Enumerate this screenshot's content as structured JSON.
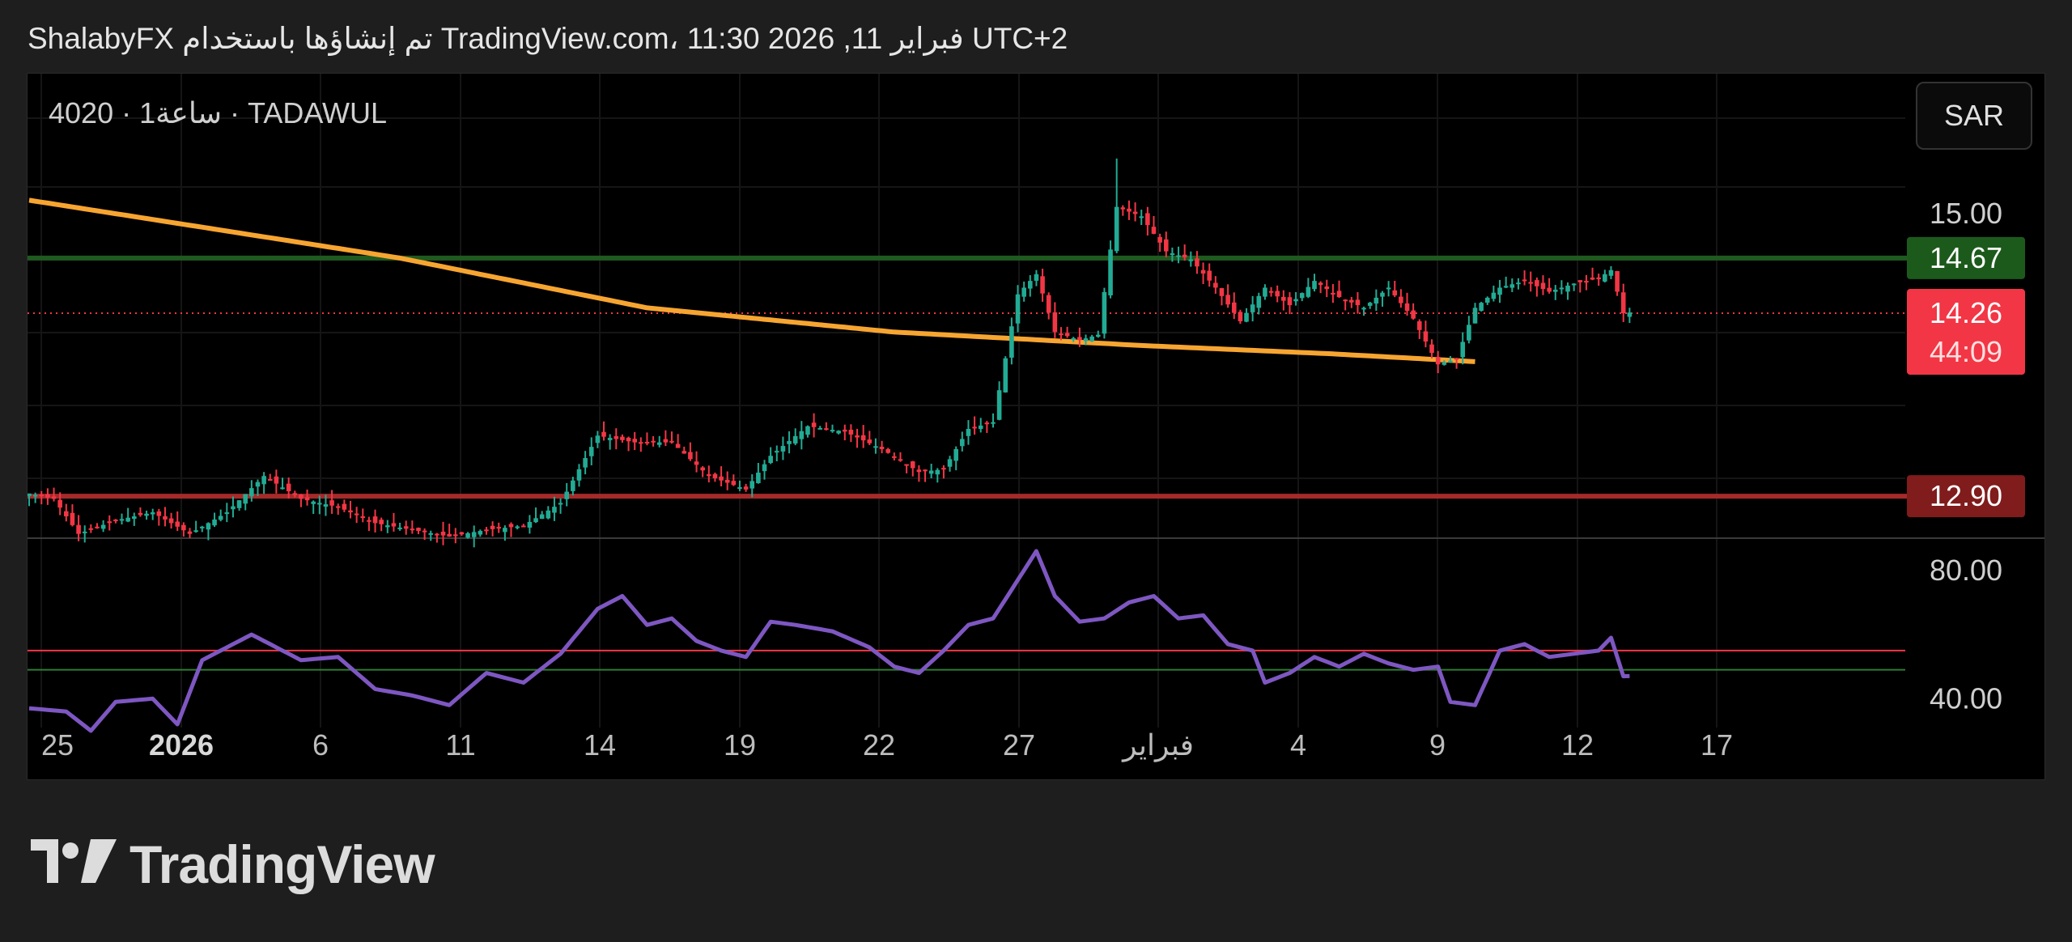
{
  "header": {
    "caption": "ShalabyFX تم إنشاؤها باستخدام TradingView.com، 11:30 2026 ,11 فبراير UTC+2"
  },
  "legend": {
    "symbol_text": "4020 · 1ساعة · TADAWUL"
  },
  "currency_button": {
    "label": "SAR"
  },
  "brand": {
    "name": "TradingView",
    "logo_icon": "tradingview-logo-icon"
  },
  "colors": {
    "up": "#22ab94",
    "down": "#f23645",
    "ma_line": "#f7a531",
    "resistance": "#1f5a1f",
    "support": "#a52a2a",
    "rsi": "#7e57c2",
    "rsi_upper": "#f23645",
    "rsi_lower": "#2e7d32"
  },
  "chart_data": {
    "type": "candlestick",
    "timeframe": "1h",
    "x_ticks": [
      {
        "label": "25",
        "bold": false
      },
      {
        "label": "2026",
        "bold": true
      },
      {
        "label": "6",
        "bold": false
      },
      {
        "label": "11",
        "bold": false
      },
      {
        "label": "14",
        "bold": false
      },
      {
        "label": "19",
        "bold": false
      },
      {
        "label": "22",
        "bold": false
      },
      {
        "label": "27",
        "bold": false
      },
      {
        "label": "فبراير",
        "bold": false
      },
      {
        "label": "4",
        "bold": false
      },
      {
        "label": "9",
        "bold": false
      },
      {
        "label": "12",
        "bold": false
      },
      {
        "label": "17",
        "bold": false
      }
    ],
    "price_axis": {
      "ylim": [
        12.6,
        15.8
      ],
      "ticks": [
        "15.00"
      ],
      "labels": {
        "resistance": "14.67",
        "last_price": "14.26",
        "countdown": "44:09",
        "support": "12.90"
      }
    },
    "levels": {
      "resistance": 14.67,
      "support": 12.9,
      "last_price": 14.26
    },
    "ohlc_anchors": [
      {
        "i": 0,
        "v": 12.92
      },
      {
        "i": 4,
        "v": 12.88
      },
      {
        "i": 8,
        "v": 12.62
      },
      {
        "i": 14,
        "v": 12.72
      },
      {
        "i": 20,
        "v": 12.78
      },
      {
        "i": 26,
        "v": 12.62
      },
      {
        "i": 32,
        "v": 12.78
      },
      {
        "i": 38,
        "v": 13.05
      },
      {
        "i": 44,
        "v": 12.88
      },
      {
        "i": 50,
        "v": 12.82
      },
      {
        "i": 56,
        "v": 12.7
      },
      {
        "i": 62,
        "v": 12.65
      },
      {
        "i": 68,
        "v": 12.6
      },
      {
        "i": 74,
        "v": 12.65
      },
      {
        "i": 80,
        "v": 12.68
      },
      {
        "i": 86,
        "v": 12.85
      },
      {
        "i": 92,
        "v": 13.35
      },
      {
        "i": 98,
        "v": 13.3
      },
      {
        "i": 104,
        "v": 13.3
      },
      {
        "i": 110,
        "v": 13.05
      },
      {
        "i": 116,
        "v": 12.95
      },
      {
        "i": 120,
        "v": 13.2
      },
      {
        "i": 126,
        "v": 13.42
      },
      {
        "i": 132,
        "v": 13.38
      },
      {
        "i": 138,
        "v": 13.25
      },
      {
        "i": 144,
        "v": 13.08
      },
      {
        "i": 148,
        "v": 13.1
      },
      {
        "i": 152,
        "v": 13.4
      },
      {
        "i": 156,
        "v": 13.45
      },
      {
        "i": 160,
        "v": 14.4
      },
      {
        "i": 163,
        "v": 14.55
      },
      {
        "i": 166,
        "v": 14.12
      },
      {
        "i": 170,
        "v": 14.06
      },
      {
        "i": 173,
        "v": 14.1
      },
      {
        "i": 176,
        "v": 15.05
      },
      {
        "i": 180,
        "v": 14.98
      },
      {
        "i": 184,
        "v": 14.72
      },
      {
        "i": 188,
        "v": 14.66
      },
      {
        "i": 192,
        "v": 14.45
      },
      {
        "i": 196,
        "v": 14.2
      },
      {
        "i": 200,
        "v": 14.45
      },
      {
        "i": 204,
        "v": 14.32
      },
      {
        "i": 208,
        "v": 14.5
      },
      {
        "i": 212,
        "v": 14.38
      },
      {
        "i": 216,
        "v": 14.3
      },
      {
        "i": 220,
        "v": 14.45
      },
      {
        "i": 224,
        "v": 14.22
      },
      {
        "i": 228,
        "v": 13.88
      },
      {
        "i": 231,
        "v": 13.92
      },
      {
        "i": 234,
        "v": 14.3
      },
      {
        "i": 238,
        "v": 14.45
      },
      {
        "i": 242,
        "v": 14.5
      },
      {
        "i": 246,
        "v": 14.42
      },
      {
        "i": 250,
        "v": 14.48
      },
      {
        "i": 254,
        "v": 14.52
      },
      {
        "i": 256,
        "v": 14.58
      },
      {
        "i": 258,
        "v": 14.26
      }
    ],
    "ma_line": [
      {
        "i": 0,
        "v": 15.1
      },
      {
        "i": 60,
        "v": 14.67
      },
      {
        "i": 100,
        "v": 14.3
      },
      {
        "i": 140,
        "v": 14.12
      },
      {
        "i": 180,
        "v": 14.02
      },
      {
        "i": 210,
        "v": 13.96
      },
      {
        "i": 234,
        "v": 13.9
      }
    ],
    "rsi": {
      "ticks": [
        "80.00",
        "40.00"
      ],
      "ylim": [
        31,
        86
      ],
      "upper_band": 55,
      "lower_band": 49,
      "anchors": [
        {
          "i": 0,
          "v": 37
        },
        {
          "i": 6,
          "v": 36
        },
        {
          "i": 10,
          "v": 30
        },
        {
          "i": 14,
          "v": 39
        },
        {
          "i": 20,
          "v": 40
        },
        {
          "i": 24,
          "v": 32
        },
        {
          "i": 28,
          "v": 52
        },
        {
          "i": 32,
          "v": 56
        },
        {
          "i": 36,
          "v": 60
        },
        {
          "i": 40,
          "v": 56
        },
        {
          "i": 44,
          "v": 52
        },
        {
          "i": 50,
          "v": 53
        },
        {
          "i": 56,
          "v": 43
        },
        {
          "i": 62,
          "v": 41
        },
        {
          "i": 68,
          "v": 38
        },
        {
          "i": 74,
          "v": 48
        },
        {
          "i": 80,
          "v": 45
        },
        {
          "i": 86,
          "v": 54
        },
        {
          "i": 92,
          "v": 68
        },
        {
          "i": 96,
          "v": 72
        },
        {
          "i": 100,
          "v": 63
        },
        {
          "i": 104,
          "v": 65
        },
        {
          "i": 108,
          "v": 58
        },
        {
          "i": 112,
          "v": 55
        },
        {
          "i": 116,
          "v": 53
        },
        {
          "i": 120,
          "v": 64
        },
        {
          "i": 124,
          "v": 63
        },
        {
          "i": 130,
          "v": 61
        },
        {
          "i": 136,
          "v": 56
        },
        {
          "i": 140,
          "v": 50
        },
        {
          "i": 144,
          "v": 48
        },
        {
          "i": 148,
          "v": 55
        },
        {
          "i": 152,
          "v": 63
        },
        {
          "i": 156,
          "v": 65
        },
        {
          "i": 160,
          "v": 77
        },
        {
          "i": 163,
          "v": 86
        },
        {
          "i": 166,
          "v": 72
        },
        {
          "i": 170,
          "v": 64
        },
        {
          "i": 174,
          "v": 65
        },
        {
          "i": 178,
          "v": 70
        },
        {
          "i": 182,
          "v": 72
        },
        {
          "i": 186,
          "v": 65
        },
        {
          "i": 190,
          "v": 66
        },
        {
          "i": 194,
          "v": 57
        },
        {
          "i": 198,
          "v": 55
        },
        {
          "i": 200,
          "v": 45
        },
        {
          "i": 204,
          "v": 48
        },
        {
          "i": 208,
          "v": 53
        },
        {
          "i": 212,
          "v": 50
        },
        {
          "i": 216,
          "v": 54
        },
        {
          "i": 220,
          "v": 51
        },
        {
          "i": 224,
          "v": 49
        },
        {
          "i": 228,
          "v": 50
        },
        {
          "i": 230,
          "v": 39
        },
        {
          "i": 234,
          "v": 38
        },
        {
          "i": 238,
          "v": 55
        },
        {
          "i": 242,
          "v": 57
        },
        {
          "i": 246,
          "v": 53
        },
        {
          "i": 250,
          "v": 54
        },
        {
          "i": 254,
          "v": 55
        },
        {
          "i": 256,
          "v": 59
        },
        {
          "i": 258,
          "v": 47
        }
      ]
    }
  }
}
